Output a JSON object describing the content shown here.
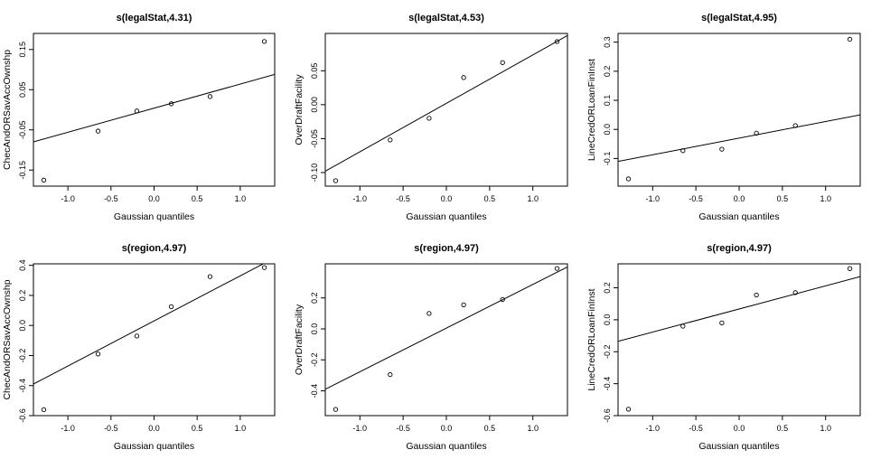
{
  "chart_data": [
    {
      "type": "scatter",
      "title": "s(legalStat,4.31)",
      "xlabel": "Gaussian quantiles",
      "ylabel": "ChecAndORSavAccOwnshp",
      "xlim": [
        -1.4,
        1.4
      ],
      "ylim": [
        -0.19,
        0.19
      ],
      "xticks": [
        "-1.0",
        "-0.5",
        "0.0",
        "0.5",
        "1.0"
      ],
      "yticks": [
        "-0.15",
        "-0.05",
        "0.05",
        "0.15"
      ],
      "points": [
        {
          "x": -1.28,
          "y": -0.175
        },
        {
          "x": -0.65,
          "y": -0.053
        },
        {
          "x": -0.2,
          "y": -0.003
        },
        {
          "x": 0.2,
          "y": 0.015
        },
        {
          "x": 0.65,
          "y": 0.033
        },
        {
          "x": 1.28,
          "y": 0.17
        }
      ],
      "fit_line": {
        "x": [
          -1.4,
          1.4
        ],
        "y": [
          -0.08,
          0.088
        ]
      }
    },
    {
      "type": "scatter",
      "title": "s(legalStat,4.53)",
      "xlabel": "Gaussian quantiles",
      "ylabel": "OverDraftFacility",
      "xlim": [
        -1.4,
        1.4
      ],
      "ylim": [
        -0.12,
        0.105
      ],
      "xticks": [
        "-1.0",
        "-0.5",
        "0.0",
        "0.5",
        "1.0"
      ],
      "yticks": [
        "-0.10",
        "-0.05",
        "0.00",
        "0.05"
      ],
      "points": [
        {
          "x": -1.28,
          "y": -0.112
        },
        {
          "x": -0.65,
          "y": -0.052
        },
        {
          "x": -0.2,
          "y": -0.02
        },
        {
          "x": 0.2,
          "y": 0.04
        },
        {
          "x": 0.65,
          "y": 0.062
        },
        {
          "x": 1.28,
          "y": 0.093
        }
      ],
      "fit_line": {
        "x": [
          -1.4,
          1.4
        ],
        "y": [
          -0.098,
          0.102
        ]
      }
    },
    {
      "type": "scatter",
      "title": "s(legalStat,4.95)",
      "xlabel": "Gaussian quantiles",
      "ylabel": "LineCredORLoanFinInst",
      "xlim": [
        -1.4,
        1.4
      ],
      "ylim": [
        -0.195,
        0.33
      ],
      "xticks": [
        "-1.0",
        "-0.5",
        "0.0",
        "0.5",
        "1.0"
      ],
      "yticks": [
        "-0.1",
        "0.0",
        "0.1",
        "0.2",
        "0.3"
      ],
      "points": [
        {
          "x": -1.28,
          "y": -0.17
        },
        {
          "x": -0.65,
          "y": -0.073
        },
        {
          "x": -0.2,
          "y": -0.068
        },
        {
          "x": 0.2,
          "y": -0.013
        },
        {
          "x": 0.65,
          "y": 0.013
        },
        {
          "x": 1.28,
          "y": 0.31
        }
      ],
      "fit_line": {
        "x": [
          -1.4,
          1.4
        ],
        "y": [
          -0.11,
          0.05
        ]
      }
    },
    {
      "type": "scatter",
      "title": "s(region,4.97)",
      "xlabel": "Gaussian quantiles",
      "ylabel": "ChecAndORSavAccOwnshp",
      "xlim": [
        -1.4,
        1.4
      ],
      "ylim": [
        -0.6,
        0.41
      ],
      "xticks": [
        "-1.0",
        "-0.5",
        "0.0",
        "0.5",
        "1.0"
      ],
      "yticks": [
        "-0.6",
        "-0.4",
        "-0.2",
        "0.0",
        "0.2",
        "0.4"
      ],
      "points": [
        {
          "x": -1.28,
          "y": -0.56
        },
        {
          "x": -0.65,
          "y": -0.19
        },
        {
          "x": -0.2,
          "y": -0.07
        },
        {
          "x": 0.2,
          "y": 0.125
        },
        {
          "x": 0.65,
          "y": 0.325
        },
        {
          "x": 1.28,
          "y": 0.385
        }
      ],
      "fit_line": {
        "x": [
          -1.4,
          1.4
        ],
        "y": [
          -0.39,
          0.45
        ]
      }
    },
    {
      "type": "scatter",
      "title": "s(region,4.97)",
      "xlabel": "Gaussian quantiles",
      "ylabel": "OverDraftFacility",
      "xlim": [
        -1.4,
        1.4
      ],
      "ylim": [
        -0.56,
        0.42
      ],
      "xticks": [
        "-1.0",
        "-0.5",
        "0.0",
        "0.5",
        "1.0"
      ],
      "yticks": [
        "-0.4",
        "-0.2",
        "0.0",
        "0.2"
      ],
      "points": [
        {
          "x": -1.28,
          "y": -0.52
        },
        {
          "x": -0.65,
          "y": -0.295
        },
        {
          "x": -0.2,
          "y": 0.1
        },
        {
          "x": 0.2,
          "y": 0.155
        },
        {
          "x": 0.65,
          "y": 0.19
        },
        {
          "x": 1.28,
          "y": 0.39
        }
      ],
      "fit_line": {
        "x": [
          -1.4,
          1.4
        ],
        "y": [
          -0.39,
          0.4
        ]
      }
    },
    {
      "type": "scatter",
      "title": "s(region,4.97)",
      "xlabel": "Gaussian quantiles",
      "ylabel": "LineCredORLoanFinInst",
      "xlim": [
        -1.4,
        1.4
      ],
      "ylim": [
        -0.6,
        0.35
      ],
      "xticks": [
        "-1.0",
        "-0.5",
        "0.0",
        "0.5",
        "1.0"
      ],
      "yticks": [
        "-0.6",
        "-0.4",
        "-0.2",
        "0.0",
        "0.2"
      ],
      "points": [
        {
          "x": -1.28,
          "y": -0.56
        },
        {
          "x": -0.65,
          "y": -0.04
        },
        {
          "x": -0.2,
          "y": -0.02
        },
        {
          "x": 0.2,
          "y": 0.155
        },
        {
          "x": 0.65,
          "y": 0.17
        },
        {
          "x": 1.28,
          "y": 0.32
        }
      ],
      "fit_line": {
        "x": [
          -1.4,
          1.4
        ],
        "y": [
          -0.135,
          0.27
        ]
      }
    }
  ]
}
